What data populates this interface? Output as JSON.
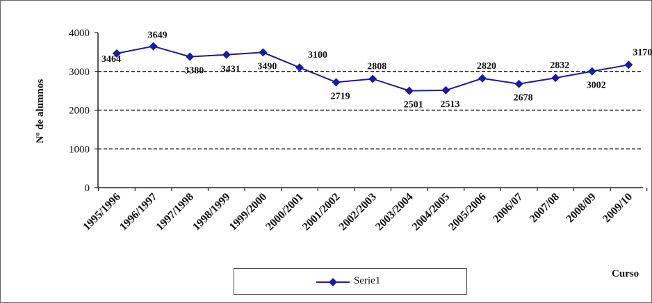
{
  "chart_data": {
    "type": "line",
    "title": "",
    "xlabel": "Curso",
    "ylabel": "Nº de alumnos",
    "ylim": [
      0,
      4000
    ],
    "yticks": [
      0,
      1000,
      2000,
      3000,
      4000
    ],
    "grid": "horizontal dashed",
    "legend_position": "bottom",
    "categories": [
      "1995/1996",
      "1996/1997",
      "1997/1998",
      "1998/1999",
      "1999/2000",
      "2000/2001",
      "2001/2002",
      "2002/2003",
      "2003/2004",
      "2004/2005",
      "2005/2006",
      "2006/07",
      "2007/08",
      "2008/09",
      "2009/10"
    ],
    "series": [
      {
        "name": "Serie1",
        "color": "#1a1aa8",
        "marker": "diamond",
        "values": [
          3464,
          3649,
          3380,
          3431,
          3490,
          3100,
          2719,
          2808,
          2501,
          2513,
          2820,
          2678,
          2832,
          3002,
          3170
        ]
      }
    ]
  }
}
